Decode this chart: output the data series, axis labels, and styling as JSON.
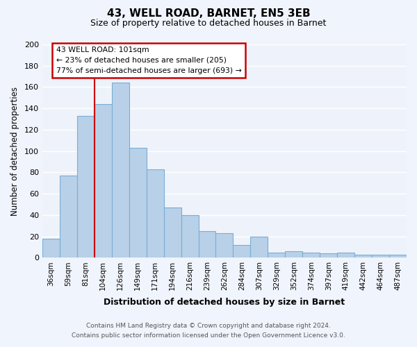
{
  "title": "43, WELL ROAD, BARNET, EN5 3EB",
  "subtitle": "Size of property relative to detached houses in Barnet",
  "xlabel": "Distribution of detached houses by size in Barnet",
  "ylabel": "Number of detached properties",
  "bar_color": "#b8d0e8",
  "bar_edge_color": "#7aadd4",
  "background_color": "#eef3fb",
  "grid_color": "#ffffff",
  "categories": [
    "36sqm",
    "59sqm",
    "81sqm",
    "104sqm",
    "126sqm",
    "149sqm",
    "171sqm",
    "194sqm",
    "216sqm",
    "239sqm",
    "262sqm",
    "284sqm",
    "307sqm",
    "329sqm",
    "352sqm",
    "374sqm",
    "397sqm",
    "419sqm",
    "442sqm",
    "464sqm",
    "487sqm"
  ],
  "values": [
    18,
    77,
    133,
    144,
    164,
    103,
    83,
    47,
    40,
    25,
    23,
    12,
    20,
    5,
    6,
    5,
    4,
    5,
    3,
    3,
    3
  ],
  "ylim": [
    0,
    200
  ],
  "yticks": [
    0,
    20,
    40,
    60,
    80,
    100,
    120,
    140,
    160,
    180,
    200
  ],
  "property_line_index": 3,
  "property_label": "43 WELL ROAD: 101sqm",
  "annotation_line1": "← 23% of detached houses are smaller (205)",
  "annotation_line2": "77% of semi-detached houses are larger (693) →",
  "annotation_box_color": "#ffffff",
  "annotation_box_edge": "#cc0000",
  "property_line_color": "#cc0000",
  "footer_line1": "Contains HM Land Registry data © Crown copyright and database right 2024.",
  "footer_line2": "Contains public sector information licensed under the Open Government Licence v3.0."
}
